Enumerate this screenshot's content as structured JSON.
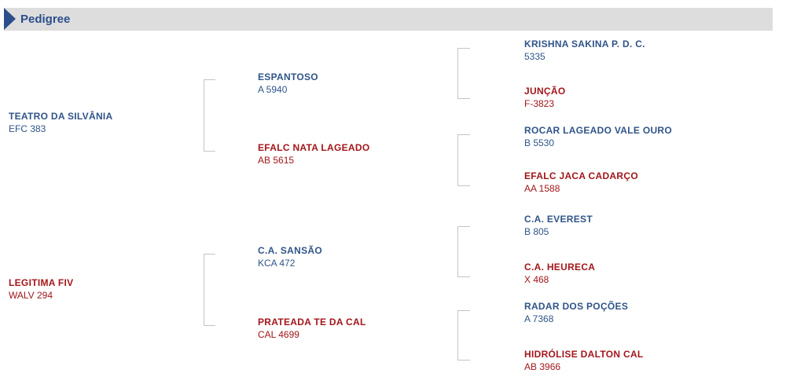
{
  "header": {
    "title": "Pedigree",
    "accent": "#2b4e8c",
    "icon": "triangle-right-icon"
  },
  "colors": {
    "male": "#2f5489",
    "female": "#a3161a"
  },
  "pedigree": {
    "parents": [
      {
        "name": "TEATRO DA SILVÂNIA",
        "code": "EFC 383",
        "sex": "m"
      },
      {
        "name": "LEGITIMA FIV",
        "code": "WALV 294",
        "sex": "f"
      }
    ],
    "grandparents": [
      {
        "name": "ESPANTOSO",
        "code": "A 5940",
        "sex": "m"
      },
      {
        "name": "EFALC NATA LAGEADO",
        "code": "AB 5615",
        "sex": "f"
      },
      {
        "name": "C.A. SANSÃO",
        "code": "KCA 472",
        "sex": "m"
      },
      {
        "name": "PRATEADA TE DA CAL",
        "code": "CAL 4699",
        "sex": "f"
      }
    ],
    "great_grandparents": [
      {
        "name": "KRISHNA SAKINA P. D. C.",
        "code": "5335",
        "sex": "m"
      },
      {
        "name": "JUNÇÃO",
        "code": "F-3823",
        "sex": "f"
      },
      {
        "name": "ROCAR LAGEADO VALE OURO",
        "code": "B 5530",
        "sex": "m"
      },
      {
        "name": "EFALC JACA CADARÇO",
        "code": "AA 1588",
        "sex": "f"
      },
      {
        "name": "C.A. EVEREST",
        "code": "B 805",
        "sex": "m"
      },
      {
        "name": "C.A. HEURECA",
        "code": "X 468",
        "sex": "f"
      },
      {
        "name": "RADAR DOS POÇÕES",
        "code": "A 7368",
        "sex": "m"
      },
      {
        "name": "HIDRÓLISE DALTON CAL",
        "code": "AB 3966",
        "sex": "f"
      }
    ]
  }
}
